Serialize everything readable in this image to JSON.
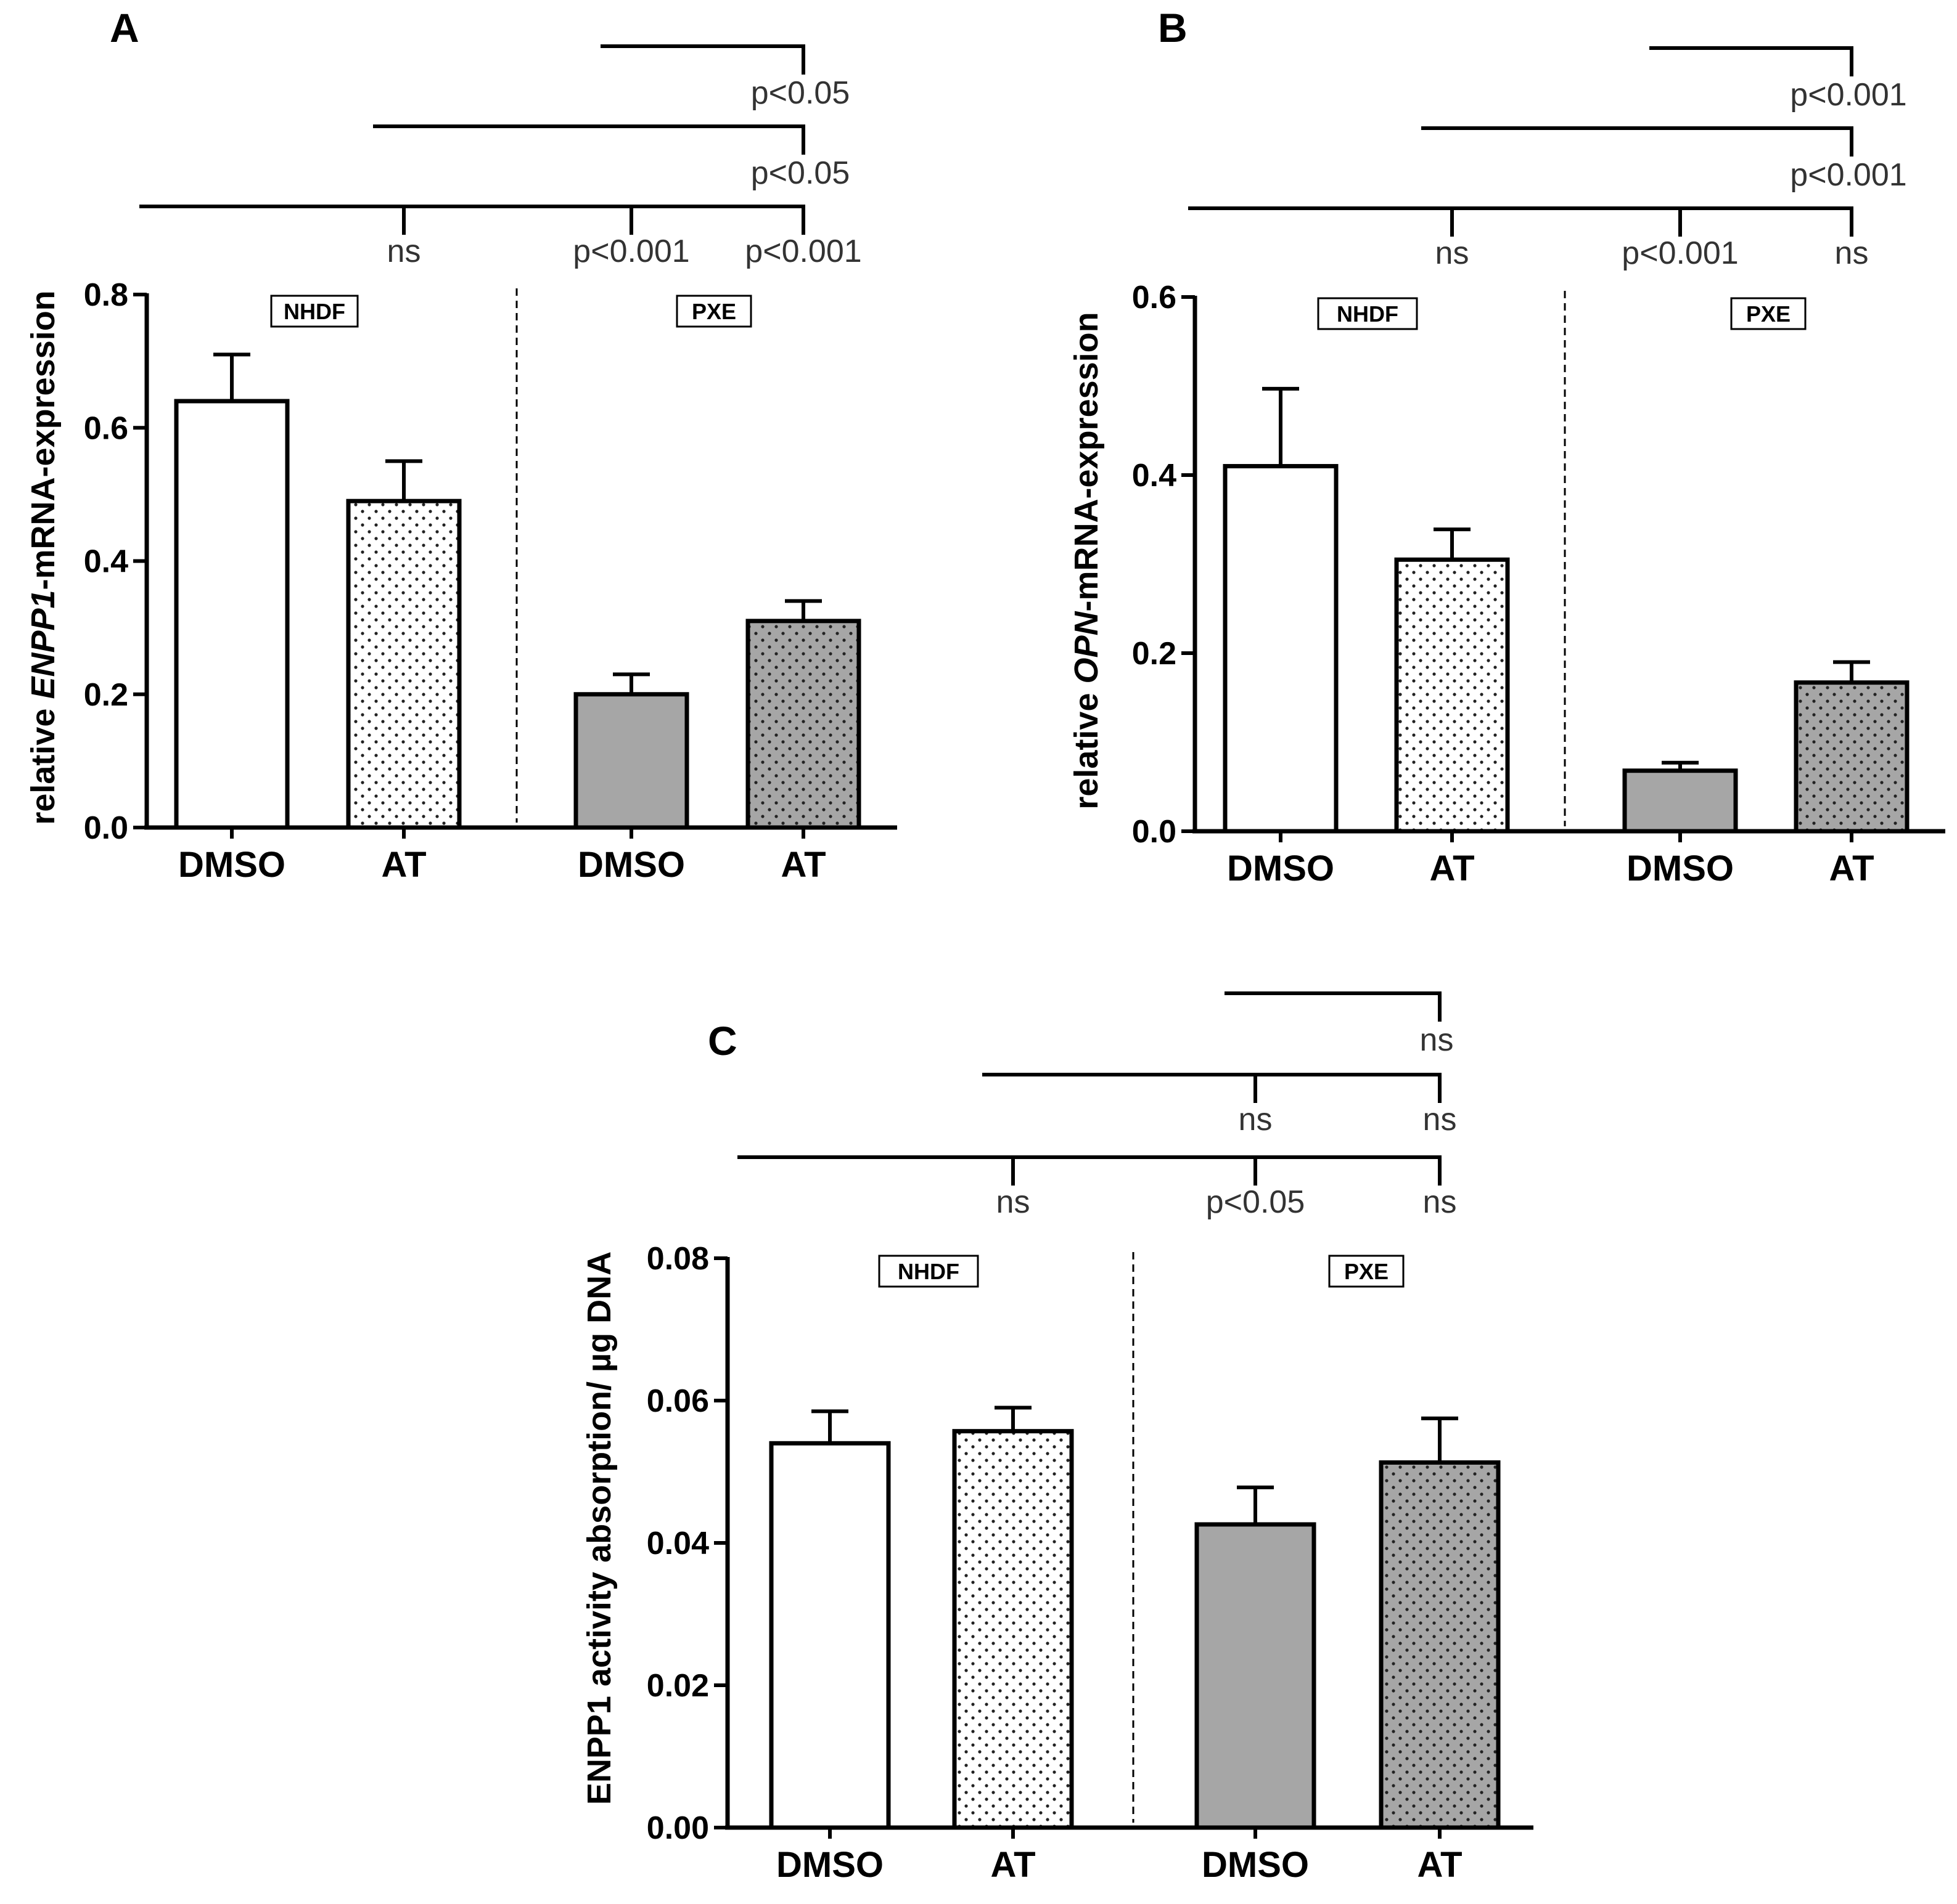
{
  "colors": {
    "axis": "#000000",
    "pxe_fill": "#a6a6a6",
    "white_fill": "#ffffff",
    "dot_color": "#222222"
  },
  "chart_data": [
    {
      "panel": "A",
      "type": "bar",
      "ylabel_prefix": "relative ",
      "ylabel_gene": "ENPP1",
      "ylabel_suffix": "-mRNA-expression",
      "categories": [
        "DMSO",
        "AT",
        "DMSO",
        "AT"
      ],
      "groups": [
        "NHDF",
        "PXE"
      ],
      "values": [
        0.64,
        0.49,
        0.2,
        0.31
      ],
      "errors": [
        0.07,
        0.06,
        0.03,
        0.03
      ],
      "fills": [
        "white",
        "dotted-light",
        "gray",
        "dotted-gray"
      ],
      "ylim": [
        0,
        0.8
      ],
      "yticks": [
        "0.0",
        "0.2",
        "0.4",
        "0.6",
        "0.8"
      ],
      "comparisons": [
        {
          "from": 2,
          "to": 3,
          "label": "p<0.05"
        },
        {
          "from": 1,
          "to": 3,
          "label": "p<0.05"
        },
        {
          "from": 0,
          "ticks": [
            1,
            2,
            3
          ],
          "labels": [
            "ns",
            "p<0.001",
            "p<0.001"
          ]
        }
      ]
    },
    {
      "panel": "B",
      "type": "bar",
      "ylabel_prefix": "relative ",
      "ylabel_gene": "OPN",
      "ylabel_suffix": "-mRNA-expression",
      "categories": [
        "DMSO",
        "AT",
        "DMSO",
        "AT"
      ],
      "groups": [
        "NHDF",
        "PXE"
      ],
      "values": [
        0.41,
        0.305,
        0.068,
        0.167
      ],
      "errors": [
        0.087,
        0.034,
        0.009,
        0.023
      ],
      "fills": [
        "white",
        "dotted-light",
        "gray",
        "dotted-gray"
      ],
      "ylim": [
        0,
        0.6
      ],
      "yticks": [
        "0.0",
        "0.2",
        "0.4",
        "0.6"
      ],
      "comparisons": [
        {
          "from": 2,
          "to": 3,
          "label": "p<0.001"
        },
        {
          "from": 1,
          "to": 3,
          "label": "p<0.001"
        },
        {
          "from": 0,
          "ticks": [
            1,
            2,
            3
          ],
          "labels": [
            "ns",
            "p<0.001",
            "ns"
          ]
        }
      ]
    },
    {
      "panel": "C",
      "type": "bar",
      "ylabel_prefix": "ENPP1 activity absorption/ µg DNA",
      "ylabel_gene": "",
      "ylabel_suffix": "",
      "categories": [
        "DMSO",
        "AT",
        "DMSO",
        "AT"
      ],
      "groups": [
        "NHDF",
        "PXE"
      ],
      "values": [
        0.054,
        0.0557,
        0.0426,
        0.0513
      ],
      "errors": [
        0.0045,
        0.0033,
        0.0052,
        0.0062
      ],
      "fills": [
        "white",
        "dotted-light",
        "gray",
        "dotted-gray"
      ],
      "ylim": [
        0,
        0.08
      ],
      "yticks": [
        "0.00",
        "0.02",
        "0.04",
        "0.06",
        "0.08"
      ],
      "comparisons": [
        {
          "from": 2,
          "to": 3,
          "label": "ns"
        },
        {
          "from": 1,
          "ticks": [
            2,
            3
          ],
          "labels": [
            "ns",
            "ns"
          ]
        },
        {
          "from": 0,
          "ticks": [
            1,
            2,
            3
          ],
          "labels": [
            "ns",
            "p<0.05",
            "ns"
          ]
        }
      ]
    }
  ]
}
